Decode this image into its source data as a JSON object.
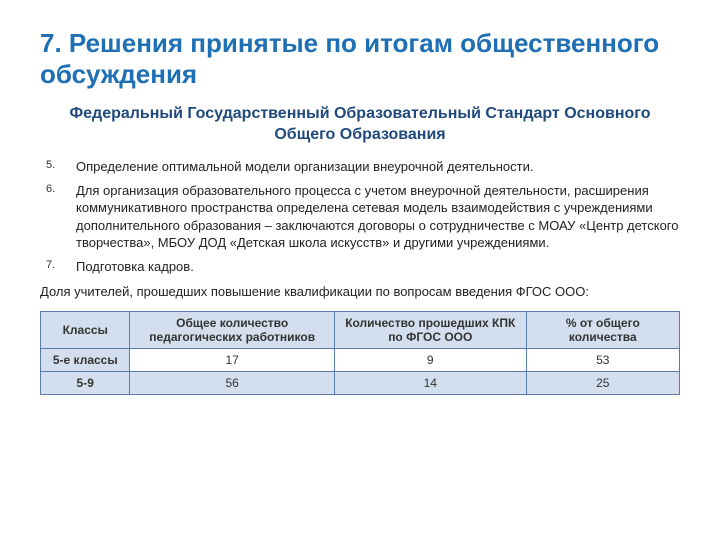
{
  "colors": {
    "title": "#1f6fb5",
    "subtitle": "#1f497d",
    "table_border": "#5b7ca8",
    "table_header_bg": "#d3dfee",
    "table_row_alt_bg": "#ffffff",
    "table_row_bg": "#d3dfee",
    "table_text": "#333333"
  },
  "title": "7. Решения принятые по итогам общественного обсуждения",
  "subtitle": "Федеральный Государственный Образовательный Стандарт Основного Общего Образования",
  "points": [
    {
      "n": "5.",
      "text": "Определение оптимальной модели организации внеурочной деятельности."
    },
    {
      "n": "6.",
      "text": "Для организация образовательного процесса с учетом внеурочной деятельности, расширения коммуникативного пространства определена сетевая модель взаимодействия с учреждениями дополнительного образования – заключаются договоры о сотрудничестве с МОАУ «Центр детского творчества», МБОУ ДОД «Детская школа искусств» и другими учреждениями."
    },
    {
      "n": "7.",
      "text": "Подготовка кадров."
    }
  ],
  "paragraph": "Доля учителей, прошедших повышение квалификации по вопросам введения ФГОС ООО:",
  "table": {
    "type": "table",
    "border_color": "#5b7ca8",
    "header_bg": "#d3dfee",
    "header_fontsize": 12,
    "cell_fontsize": 12,
    "col_widths_pct": [
      14,
      32,
      30,
      24
    ],
    "columns": [
      "Классы",
      "Общее количество педагогических работников",
      "Количество прошедших КПК по ФГОС ООО",
      "% от общего количества"
    ],
    "rows": [
      {
        "head": "5-е классы",
        "cells": [
          "17",
          "9",
          "53"
        ],
        "bg": "#ffffff"
      },
      {
        "head": "5-9",
        "cells": [
          "56",
          "14",
          "25"
        ],
        "bg": "#d3dfee"
      }
    ]
  }
}
